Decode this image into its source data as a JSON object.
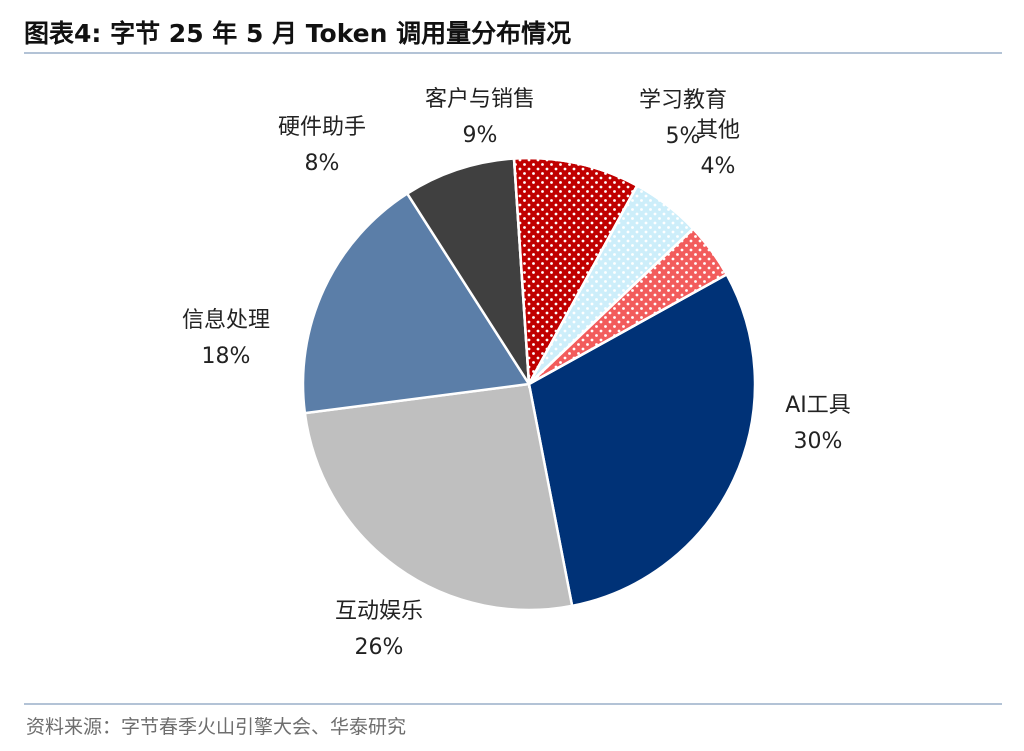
{
  "title": "图表4:  字节 25 年 5 月 Token 调用量分布情况",
  "source": "资料来源：字节春季火山引擎大会、华泰研究",
  "chart_data": {
    "type": "pie",
    "unit": "%",
    "slices": [
      {
        "name": "AI工具",
        "value": 30,
        "label": "30%",
        "color": "#003277",
        "pattern": "solid"
      },
      {
        "name": "互动娱乐",
        "value": 26,
        "label": "26%",
        "color": "#bfbfbf",
        "pattern": "solid"
      },
      {
        "name": "信息处理",
        "value": 18,
        "label": "18%",
        "color": "#5b7ea8",
        "pattern": "solid"
      },
      {
        "name": "硬件助手",
        "value": 8,
        "label": "8%",
        "color": "#404040",
        "pattern": "solid"
      },
      {
        "name": "客户与销售",
        "value": 9,
        "label": "9%",
        "color": "#c00000",
        "pattern": "dots-white"
      },
      {
        "name": "学习教育",
        "value": 5,
        "label": "5%",
        "color": "#cdeefa",
        "pattern": "dots-white"
      },
      {
        "name": "其他",
        "value": 4,
        "label": "4%",
        "color": "#f25c5c",
        "pattern": "dots-white"
      }
    ]
  }
}
